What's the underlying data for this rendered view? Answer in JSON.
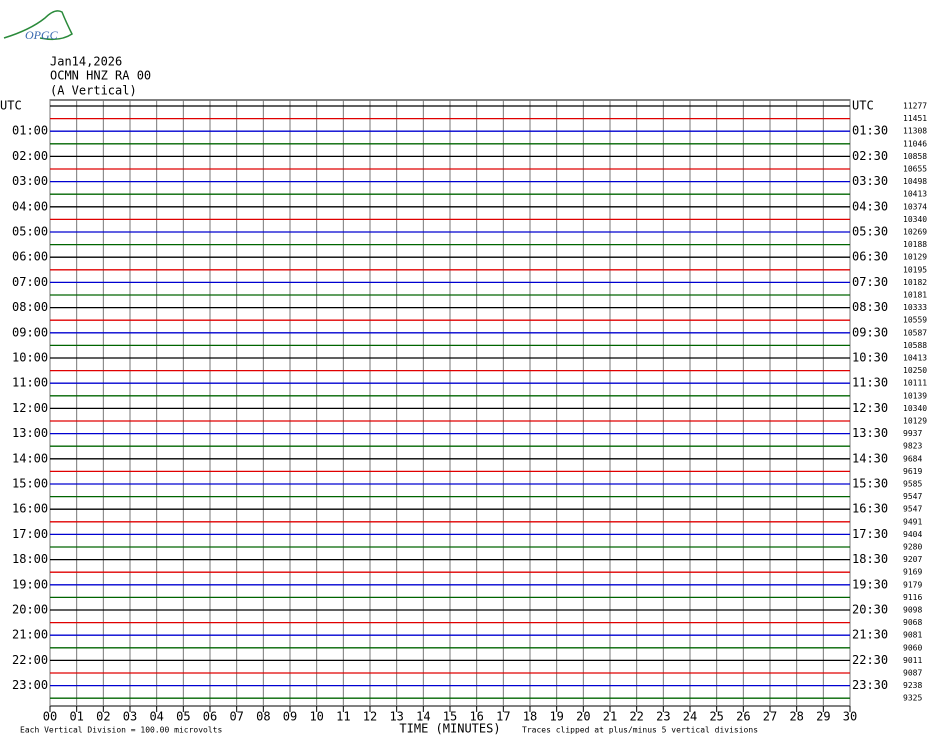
{
  "logo": "OPGC",
  "chart_data": {
    "type": "helicorder",
    "title": "Jan14,2026",
    "subtitle": [
      "OCMN HNZ RA 00",
      "(A Vertical)"
    ],
    "xlabel": "TIME (MINUTES)",
    "notes": [
      "Each Vertical Division =  100.00 microvolts",
      "Traces clipped at plus/minus 5 vertical divisions"
    ],
    "colors": [
      "#000000",
      "#e00000",
      "#0000d0",
      "#006400"
    ],
    "grid": true,
    "xlim": [
      0,
      30
    ],
    "xticks": [
      {
        "value": 0,
        "label": "00"
      },
      {
        "value": 1,
        "label": "01"
      },
      {
        "value": 2,
        "label": "02"
      },
      {
        "value": 3,
        "label": "03"
      },
      {
        "value": 4,
        "label": "04"
      },
      {
        "value": 5,
        "label": "05"
      },
      {
        "value": 6,
        "label": "06"
      },
      {
        "value": 7,
        "label": "07"
      },
      {
        "value": 8,
        "label": "08"
      },
      {
        "value": 9,
        "label": "09"
      },
      10,
      11,
      12,
      13,
      14,
      15,
      16,
      17,
      18,
      19,
      20,
      21,
      22,
      23,
      24,
      25,
      26,
      27,
      28,
      29,
      30
    ],
    "left_labels": [
      "UTC",
      null,
      "01:00",
      null,
      "02:00",
      null,
      "03:00",
      null,
      "04:00",
      null,
      "05:00",
      null,
      "06:00",
      null,
      "07:00",
      null,
      "08:00",
      null,
      "09:00",
      null,
      "10:00",
      null,
      "11:00",
      null,
      "12:00",
      null,
      "13:00",
      null,
      "14:00",
      null,
      "15:00",
      null,
      "16:00",
      null,
      "17:00",
      null,
      "18:00",
      null,
      "19:00",
      null,
      "20:00",
      null,
      "21:00",
      null,
      "22:00",
      null,
      "23:00",
      null
    ],
    "right_labels": [
      "UTC",
      null,
      "01:30",
      null,
      "02:30",
      null,
      "03:30",
      null,
      "04:30",
      null,
      "05:30",
      null,
      "06:30",
      null,
      "07:30",
      null,
      "08:30",
      null,
      "09:30",
      null,
      "10:30",
      null,
      "11:30",
      null,
      "12:30",
      null,
      "13:30",
      null,
      "14:30",
      null,
      "15:30",
      null,
      "16:30",
      null,
      "17:30",
      null,
      "18:30",
      null,
      "19:30",
      null,
      "20:30",
      null,
      "21:30",
      null,
      "22:30",
      null,
      "23:30",
      null
    ],
    "row_values": [
      11277,
      11451,
      11308,
      11046,
      10858,
      10655,
      10498,
      10413,
      10374,
      10340,
      10269,
      10188,
      10129,
      10195,
      10182,
      10181,
      10333,
      10559,
      10587,
      10588,
      10413,
      10250,
      10111,
      10139,
      10340,
      10129,
      9937,
      9823,
      9684,
      9619,
      9585,
      9547,
      9547,
      9491,
      9404,
      9280,
      9207,
      9169,
      9179,
      9116,
      9098,
      9068,
      9081,
      9060,
      9011,
      9087,
      9238,
      9325
    ]
  }
}
